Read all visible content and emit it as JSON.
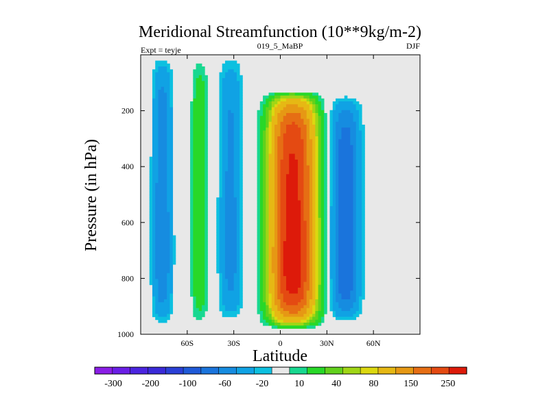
{
  "chart_data": {
    "type": "heatmap",
    "title": "Meridional Streamfunction (10**9kg/m-2)",
    "subtitle_left": "Expt = teyje",
    "subtitle_center": "019_5_MaBP",
    "subtitle_right": "DJF",
    "xlabel": "Latitude",
    "ylabel": "Pressure (in hPa)",
    "xlim": [
      -90,
      90
    ],
    "ylim": [
      1000,
      0
    ],
    "x_ticks": [
      {
        "value": -60,
        "label": "60S"
      },
      {
        "value": -30,
        "label": "30S"
      },
      {
        "value": 0,
        "label": "0"
      },
      {
        "value": 30,
        "label": "30N"
      },
      {
        "value": 60,
        "label": "60N"
      }
    ],
    "y_ticks": [
      {
        "value": 200,
        "label": "200"
      },
      {
        "value": 400,
        "label": "400"
      },
      {
        "value": 600,
        "label": "600"
      },
      {
        "value": 800,
        "label": "800"
      },
      {
        "value": 1000,
        "label": "1000"
      }
    ],
    "background_color": "#e8e8e8",
    "contour_bins": [
      {
        "lo": -9999,
        "hi": -300,
        "color": "#8a1ee6"
      },
      {
        "lo": -300,
        "hi": -250,
        "color": "#6a1ee6"
      },
      {
        "lo": -250,
        "hi": -200,
        "color": "#4b24e0"
      },
      {
        "lo": -200,
        "hi": -150,
        "color": "#3a2ad8"
      },
      {
        "lo": -150,
        "hi": -100,
        "color": "#2a3fd6"
      },
      {
        "lo": -100,
        "hi": -80,
        "color": "#1f5ad8"
      },
      {
        "lo": -80,
        "hi": -60,
        "color": "#1a74dc"
      },
      {
        "lo": -60,
        "hi": -40,
        "color": "#168ce0"
      },
      {
        "lo": -40,
        "hi": -20,
        "color": "#10a2e4"
      },
      {
        "lo": -20,
        "hi": -10,
        "color": "#0dc0e0"
      },
      {
        "lo": -10,
        "hi": 10,
        "color": "#e8e8e8"
      },
      {
        "lo": 10,
        "hi": 20,
        "color": "#18d890"
      },
      {
        "lo": 20,
        "hi": 40,
        "color": "#28d828"
      },
      {
        "lo": 40,
        "hi": 60,
        "color": "#62d11c"
      },
      {
        "lo": 60,
        "hi": 80,
        "color": "#a0d616"
      },
      {
        "lo": 80,
        "hi": 100,
        "color": "#dcd810"
      },
      {
        "lo": 100,
        "hi": 150,
        "color": "#e6b814"
      },
      {
        "lo": 150,
        "hi": 200,
        "color": "#e69814"
      },
      {
        "lo": 200,
        "hi": 250,
        "color": "#e66e14"
      },
      {
        "lo": 250,
        "hi": 300,
        "color": "#e44a12"
      },
      {
        "lo": 300,
        "hi": 9999,
        "color": "#dd1a0a"
      }
    ],
    "colorbar_labels": [
      "-300",
      "-200",
      "-100",
      "-60",
      "-20",
      "10",
      "40",
      "80",
      "150",
      "250"
    ],
    "features": [
      {
        "name": "sh-ferrel-cell",
        "sign": "negative",
        "lat_center": -76,
        "lat_halfwidth": 6,
        "p_top": 0,
        "p_bottom": 970,
        "peak": -55
      },
      {
        "name": "sh-polar-cell",
        "sign": "positive",
        "lat_center": -52,
        "lat_halfwidth": 5,
        "p_top": 0,
        "p_bottom": 970,
        "peak": 35
      },
      {
        "name": "sh-midlatitude-cell",
        "sign": "negative",
        "lat_center": -32,
        "lat_halfwidth": 7,
        "p_top": 0,
        "p_bottom": 960,
        "peak": -45
      },
      {
        "name": "hadley-cell",
        "sign": "positive",
        "lat_center": 8,
        "lat_halfwidth": 14,
        "p_top": 130,
        "p_bottom": 980,
        "peak": 320
      },
      {
        "name": "nh-ferrel-cell",
        "sign": "negative",
        "lat_center": 42,
        "lat_halfwidth": 9,
        "p_top": 140,
        "p_bottom": 960,
        "peak": -75
      }
    ]
  }
}
